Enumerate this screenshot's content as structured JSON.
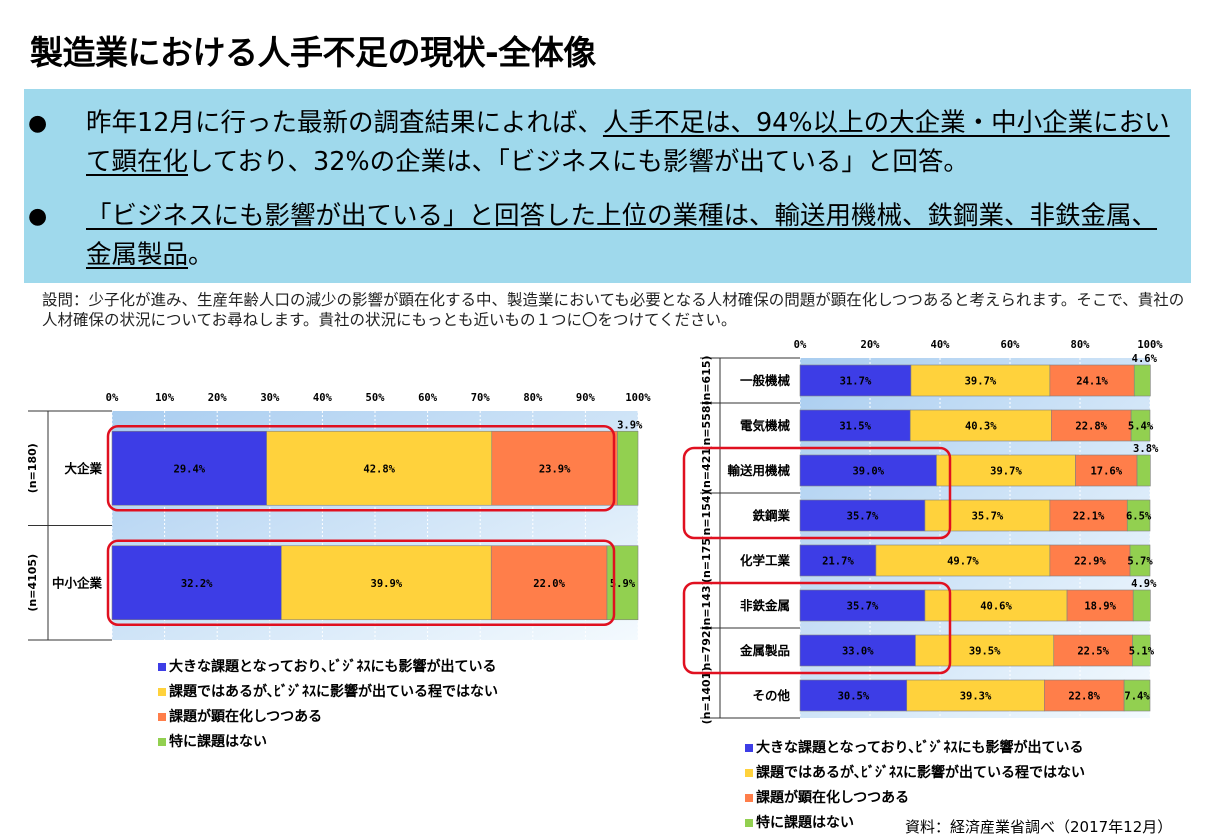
{
  "title": "製造業における人手不足の現状-全体像",
  "bullets": [
    {
      "a": "昨年12月に行った最新の調査結果によれば、",
      "b": "人手不足は、94%以上の大企業・中小企業において顕在化",
      "c": "しており、32%の企業は、「ビジネスにも影響が出ている」と回答。"
    },
    {
      "a": "",
      "b": "「ビジネスにも影響が出ている」と回答した上位の業種は、輸送用機械、鉄鋼業、非鉄金属、金属製品",
      "c": "。"
    }
  ],
  "question": "設問：少子化が進み、生産年齢人口の減少の影響が顕在化する中、製造業においても必要となる人材確保の問題が顕在化しつつあると考えられます。そこで、貴社の人材確保の状況についてお尋ねします。貴社の状況にもっとも近いもの１つに〇をつけてください。",
  "source": "資料：経済産業省調べ（2017年12月）",
  "colors": {
    "blue": "#3d3de6",
    "yellow": "#ffd23c",
    "orange": "#ff7e4a",
    "green": "#92d050",
    "highlight": "#e01020"
  },
  "legend": [
    "大きな課題となっており､ﾋﾞｼﾞﾈｽにも影響が出ている",
    "課題ではあるが､ﾋﾞｼﾞﾈｽに影響が出ている程ではない",
    "課題が顕在化しつつある",
    "特に課題はない"
  ],
  "chart_data": [
    {
      "type": "bar",
      "orientation": "horizontal-stacked-100",
      "x_ticks": [
        "0%",
        "10%",
        "20%",
        "30%",
        "40%",
        "50%",
        "60%",
        "70%",
        "80%",
        "90%",
        "100%"
      ],
      "categories": [
        {
          "label": "大企業",
          "n": "(n=180)",
          "values": [
            29.4,
            42.8,
            23.9,
            3.9
          ],
          "highlighted": true
        },
        {
          "label": "中小企業",
          "n": "(n=4105)",
          "values": [
            32.2,
            39.9,
            22.0,
            5.9
          ],
          "highlighted": true
        }
      ],
      "series": [
        {
          "name": "大きな課題となっており､ﾋﾞｼﾞﾈｽにも影響が出ている"
        },
        {
          "name": "課題ではあるが､ﾋﾞｼﾞﾈｽに影響が出ている程ではない"
        },
        {
          "name": "課題が顕在化しつつある"
        },
        {
          "name": "特に課題はない"
        }
      ],
      "xlim": [
        0,
        100
      ]
    },
    {
      "type": "bar",
      "orientation": "horizontal-stacked-100",
      "x_ticks": [
        "0%",
        "20%",
        "40%",
        "60%",
        "80%",
        "100%"
      ],
      "categories": [
        {
          "label": "一般機械",
          "n": "(n=615)",
          "values": [
            31.7,
            39.7,
            24.1,
            4.6
          ]
        },
        {
          "label": "電気機械",
          "n": "(n=558)",
          "values": [
            31.5,
            40.3,
            22.8,
            5.4
          ]
        },
        {
          "label": "輸送用機械",
          "n": "(n=421",
          "values": [
            39.0,
            39.7,
            17.6,
            3.8
          ],
          "highlighted": true
        },
        {
          "label": "鉄鋼業",
          "n": "(n=154)",
          "values": [
            35.7,
            35.7,
            22.1,
            6.5
          ],
          "highlighted": true
        },
        {
          "label": "化学工業",
          "n": "(n=175",
          "values": [
            21.7,
            49.7,
            22.9,
            5.7
          ]
        },
        {
          "label": "非鉄金属",
          "n": "(n=143)",
          "values": [
            35.7,
            40.6,
            18.9,
            4.9
          ],
          "highlighted": true
        },
        {
          "label": "金属製品",
          "n": "(n=792)",
          "values": [
            33.0,
            39.5,
            22.5,
            5.1
          ],
          "highlighted": true
        },
        {
          "label": "その他",
          "n": "(n=1401)",
          "values": [
            30.5,
            39.3,
            22.8,
            7.4
          ]
        }
      ],
      "series": [
        {
          "name": "大きな課題となっており､ﾋﾞｼﾞﾈｽにも影響が出ている"
        },
        {
          "name": "課題ではあるが､ﾋﾞｼﾞﾈｽに影響が出ている程ではない"
        },
        {
          "name": "課題が顕在化しつつある"
        },
        {
          "name": "特に課題はない"
        }
      ],
      "xlim": [
        0,
        100
      ]
    }
  ]
}
